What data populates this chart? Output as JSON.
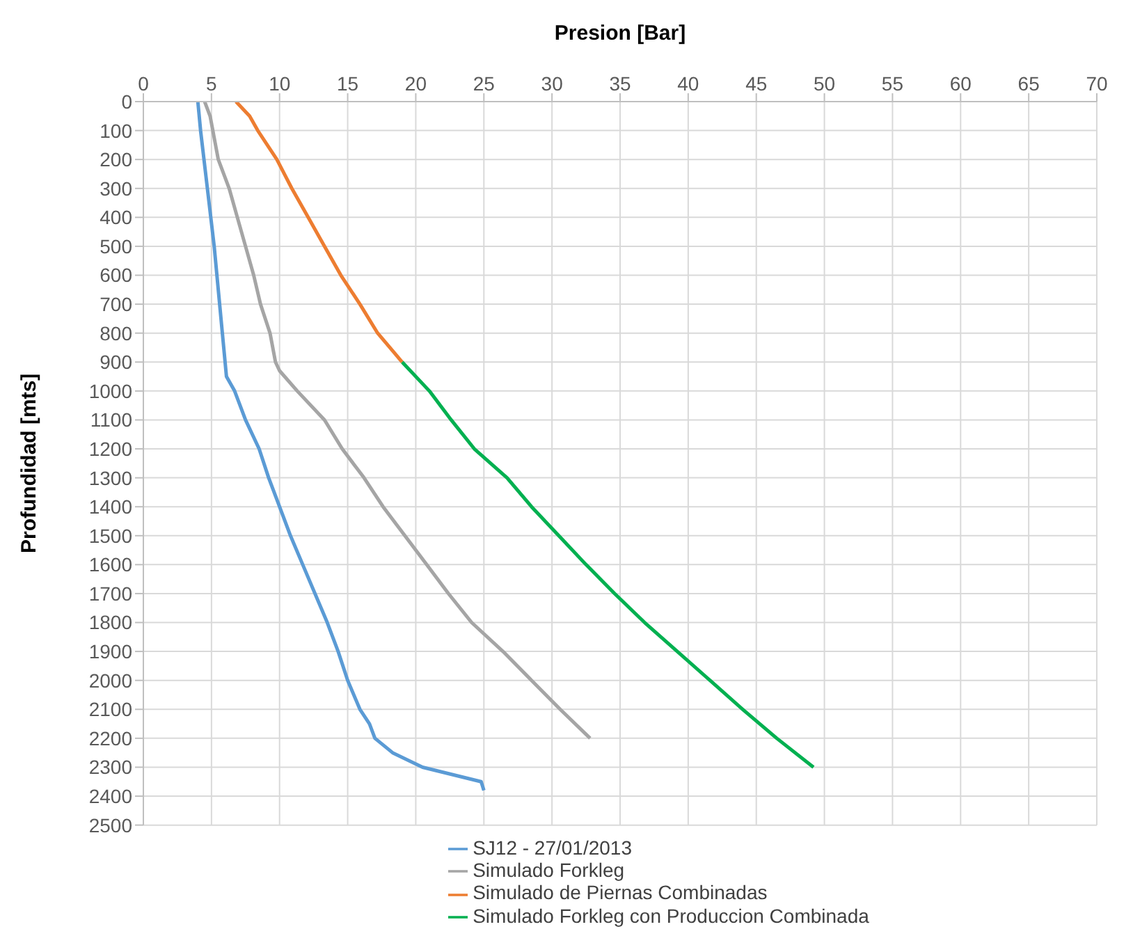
{
  "chart_data": {
    "type": "line",
    "xlabel": "Presion [Bar]",
    "ylabel": "Profundidad [mts]",
    "xlim": [
      0,
      70
    ],
    "xticks": [
      0,
      5,
      10,
      15,
      20,
      25,
      30,
      35,
      40,
      45,
      50,
      55,
      60,
      65,
      70
    ],
    "ylim": [
      2500,
      0
    ],
    "yticks": [
      0,
      100,
      200,
      300,
      400,
      500,
      600,
      700,
      800,
      900,
      1000,
      1100,
      1200,
      1300,
      1400,
      1500,
      1600,
      1700,
      1800,
      1900,
      2000,
      2100,
      2200,
      2300,
      2400,
      2500
    ],
    "grid": true,
    "legend": "bottom",
    "marker": "none",
    "line_style": "solid",
    "series": [
      {
        "name": "SJ12 - 27/01/2013",
        "color": "#5b9bd5",
        "x": [
          4,
          4.2,
          5.2,
          5.8,
          6.1,
          6.7,
          7.5,
          8.5,
          9.2,
          10,
          10.8,
          11.7,
          12.6,
          13.5,
          14.3,
          15,
          15.9,
          16.6,
          17,
          18.3,
          20.5,
          24.8,
          25
        ],
        "values": [
          0,
          100,
          500,
          800,
          950,
          1000,
          1100,
          1200,
          1300,
          1400,
          1500,
          1600,
          1700,
          1800,
          1900,
          2000,
          2100,
          2150,
          2200,
          2250,
          2300,
          2350,
          2380
        ]
      },
      {
        "name": "Simulado Forkleg",
        "color": "#a5a5a5",
        "x": [
          4.5,
          4.9,
          5.5,
          6.3,
          6.9,
          7.5,
          8.1,
          8.6,
          9.3,
          9.7,
          10,
          11.3,
          13.3,
          14.6,
          16.2,
          17.6,
          19.2,
          20.8,
          22.4,
          24.1,
          26.4,
          28.5,
          30.6,
          32.8
        ],
        "values": [
          0,
          50,
          200,
          300,
          400,
          500,
          600,
          700,
          800,
          900,
          930,
          1000,
          1100,
          1200,
          1300,
          1400,
          1500,
          1600,
          1700,
          1800,
          1900,
          2000,
          2100,
          2200
        ]
      },
      {
        "name": "Simulado de Piernas Combinadas",
        "color": "#ed7d31",
        "x": [
          6.8,
          7.8,
          8.4,
          9.8,
          10.9,
          12.1,
          13.3,
          14.5,
          15.9,
          17.2,
          19
        ],
        "values": [
          0,
          50,
          100,
          200,
          300,
          400,
          500,
          600,
          700,
          800,
          900
        ]
      },
      {
        "name": "Simulado Forkleg con Produccion Combinada",
        "color": "#00b050",
        "x": [
          19,
          21,
          22.6,
          24.3,
          26.7,
          28.5,
          30.5,
          32.5,
          34.6,
          36.8,
          39.2,
          41.6,
          44,
          46.5,
          49.2
        ],
        "values": [
          900,
          1000,
          1100,
          1200,
          1300,
          1400,
          1500,
          1600,
          1700,
          1800,
          1900,
          2000,
          2100,
          2200,
          2300
        ]
      }
    ]
  }
}
